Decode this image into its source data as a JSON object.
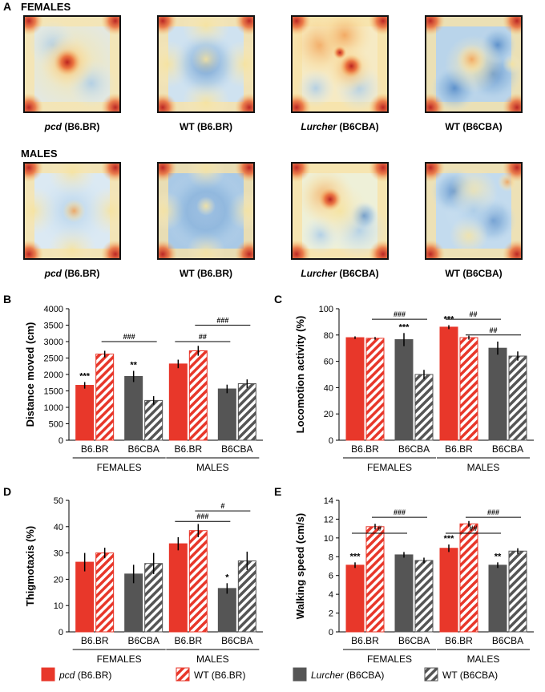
{
  "colors": {
    "pcd": "#e8372a",
    "wt_br_hatch": "#e8372a",
    "lurcher": "#555555",
    "wt_cba_hatch": "#555555",
    "heat_low": "#5a8ec8",
    "heat_mid": "#f7edc4",
    "heat_high": "#c62828"
  },
  "heatmaps": {
    "panel_label": "A",
    "rows": [
      {
        "title": "FEMALES",
        "captions": [
          {
            "bold": "pcd",
            "rest": " (B6.BR)",
            "italic": true
          },
          {
            "bold": "WT",
            "rest": " (B6.BR)",
            "italic": false
          },
          {
            "bold": "Lurcher",
            "rest": " (B6CBA)",
            "italic": true
          },
          {
            "bold": "WT",
            "rest": " (B6CBA)",
            "italic": false
          }
        ]
      },
      {
        "title": "MALES",
        "captions": [
          {
            "bold": "pcd",
            "rest": " (B6.BR)",
            "italic": true
          },
          {
            "bold": "WT",
            "rest": " (B6.BR)",
            "italic": false
          },
          {
            "bold": "Lurcher",
            "rest": " (B6CBA)",
            "italic": true
          },
          {
            "bold": "WT",
            "rest": " (B6CBA)",
            "italic": false
          }
        ]
      }
    ]
  },
  "legend": {
    "entries": [
      {
        "italic": "pcd",
        "text": " (B6.BR)",
        "style": "solid-red"
      },
      {
        "italic": "",
        "text": "WT (B6.BR)",
        "style": "hatch-red"
      },
      {
        "italic": "Lurcher",
        "text": " (B6CBA)",
        "style": "solid-gray"
      },
      {
        "italic": "",
        "text": "WT (B6CBA)",
        "style": "hatch-gray"
      }
    ]
  },
  "chart_data": [
    {
      "panel": "B",
      "type": "bar",
      "ylabel": "Distance moved (cm)",
      "ylim": [
        0,
        4000
      ],
      "yticks": [
        0,
        500,
        1000,
        1500,
        2000,
        2500,
        3000,
        3500,
        4000
      ],
      "strain_labels": [
        "B6.BR",
        "B6CBA",
        "B6.BR",
        "B6CBA"
      ],
      "sex_labels": [
        "FEMALES",
        "MALES"
      ],
      "series": [
        {
          "name": "pcd (B6.BR)",
          "values": [
            1670,
            2320
          ],
          "errors": [
            100,
            130
          ]
        },
        {
          "name": "WT (B6.BR)",
          "values": [
            2620,
            2720
          ],
          "errors": [
            100,
            150
          ]
        },
        {
          "name": "Lurcher (B6CBA)",
          "values": [
            1940,
            1560
          ],
          "errors": [
            170,
            130
          ]
        },
        {
          "name": "WT (B6CBA)",
          "values": [
            1210,
            1720
          ],
          "errors": [
            130,
            130
          ]
        }
      ],
      "stars": [
        {
          "group": 0,
          "bar": 0,
          "text": "***"
        },
        {
          "group": 0,
          "bar": 2,
          "text": "**"
        }
      ],
      "brackets": [
        {
          "from": [
            0,
            1
          ],
          "to": [
            0,
            3
          ],
          "y": 3000,
          "text": "###"
        },
        {
          "from": [
            1,
            0
          ],
          "to": [
            1,
            2
          ],
          "y": 3000,
          "text": "##"
        },
        {
          "from": [
            1,
            1
          ],
          "to": [
            1,
            3
          ],
          "y": 3500,
          "text": "###"
        }
      ]
    },
    {
      "panel": "C",
      "type": "bar",
      "ylabel": "Locomotion activity (%)",
      "ylim": [
        0,
        100
      ],
      "yticks": [
        0,
        20,
        40,
        60,
        80,
        100
      ],
      "strain_labels": [
        "B6.BR",
        "B6CBA",
        "B6.BR",
        "B6CBA"
      ],
      "sex_labels": [
        "FEMALES",
        "MALES"
      ],
      "series": [
        {
          "name": "pcd (B6.BR)",
          "values": [
            78,
            86
          ],
          "errors": [
            1,
            1.5
          ]
        },
        {
          "name": "WT (B6.BR)",
          "values": [
            77.5,
            78
          ],
          "errors": [
            1,
            1.5
          ]
        },
        {
          "name": "Lurcher (B6CBA)",
          "values": [
            76.5,
            70
          ],
          "errors": [
            5,
            5
          ]
        },
        {
          "name": "WT (B6CBA)",
          "values": [
            50,
            64
          ],
          "errors": [
            3.5,
            3.5
          ]
        }
      ],
      "stars": [
        {
          "group": 0,
          "bar": 2,
          "text": "***"
        },
        {
          "group": 1,
          "bar": 0,
          "text": "***"
        }
      ],
      "brackets": [
        {
          "from": [
            0,
            1
          ],
          "to": [
            0,
            3
          ],
          "y": 92,
          "text": "###"
        },
        {
          "from": [
            1,
            0
          ],
          "to": [
            1,
            2
          ],
          "y": 92,
          "text": "##"
        },
        {
          "from": [
            1,
            1
          ],
          "to": [
            1,
            3
          ],
          "y": 80,
          "text": "##"
        }
      ]
    },
    {
      "panel": "D",
      "type": "bar",
      "ylabel": "Thigmotaxis (%)",
      "ylim": [
        0,
        50
      ],
      "yticks": [
        0,
        10,
        20,
        30,
        40,
        50
      ],
      "strain_labels": [
        "B6.BR",
        "B6CBA",
        "B6.BR",
        "B6CBA"
      ],
      "sex_labels": [
        "FEMALES",
        "MALES"
      ],
      "series": [
        {
          "name": "pcd (B6.BR)",
          "values": [
            26.5,
            33.5
          ],
          "errors": [
            3.5,
            2.5
          ]
        },
        {
          "name": "WT (B6.BR)",
          "values": [
            30,
            38.5
          ],
          "errors": [
            2,
            2.5
          ]
        },
        {
          "name": "Lurcher (B6CBA)",
          "values": [
            22,
            16.5
          ],
          "errors": [
            3.5,
            2
          ]
        },
        {
          "name": "WT (B6CBA)",
          "values": [
            26,
            27
          ],
          "errors": [
            4,
            3.5
          ]
        }
      ],
      "stars": [
        {
          "group": 1,
          "bar": 2,
          "text": "*"
        }
      ],
      "brackets": [
        {
          "from": [
            1,
            0
          ],
          "to": [
            1,
            2
          ],
          "y": 42,
          "text": "###"
        },
        {
          "from": [
            1,
            1
          ],
          "to": [
            1,
            3
          ],
          "y": 46,
          "text": "#"
        }
      ]
    },
    {
      "panel": "E",
      "type": "bar",
      "ylabel": "Walking speed (cm/s)",
      "ylim": [
        0,
        14
      ],
      "yticks": [
        0,
        2,
        4,
        6,
        8,
        10,
        12,
        14
      ],
      "strain_labels": [
        "B6.BR",
        "B6CBA",
        "B6.BR",
        "B6CBA"
      ],
      "sex_labels": [
        "FEMALES",
        "MALES"
      ],
      "series": [
        {
          "name": "pcd (B6.BR)",
          "values": [
            7.1,
            8.9
          ],
          "errors": [
            0.3,
            0.4
          ]
        },
        {
          "name": "WT (B6.BR)",
          "values": [
            11.2,
            11.5
          ],
          "errors": [
            0.3,
            0.3
          ]
        },
        {
          "name": "Lurcher (B6CBA)",
          "values": [
            8.2,
            7.1
          ],
          "errors": [
            0.3,
            0.3
          ]
        },
        {
          "name": "WT (B6CBA)",
          "values": [
            7.6,
            8.6
          ],
          "errors": [
            0.3,
            0.3
          ]
        }
      ],
      "stars": [
        {
          "group": 0,
          "bar": 0,
          "text": "***"
        },
        {
          "group": 1,
          "bar": 0,
          "text": "***"
        },
        {
          "group": 1,
          "bar": 2,
          "text": "**"
        }
      ],
      "brackets": [
        {
          "from": [
            0,
            0
          ],
          "to": [
            0,
            2
          ],
          "y": 10.5,
          "text": "#"
        },
        {
          "from": [
            0,
            1
          ],
          "to": [
            0,
            3
          ],
          "y": 12.2,
          "text": "###"
        },
        {
          "from": [
            1,
            0
          ],
          "to": [
            1,
            2
          ],
          "y": 10.5,
          "text": "##"
        },
        {
          "from": [
            1,
            1
          ],
          "to": [
            1,
            3
          ],
          "y": 12.2,
          "text": "###"
        }
      ]
    }
  ]
}
